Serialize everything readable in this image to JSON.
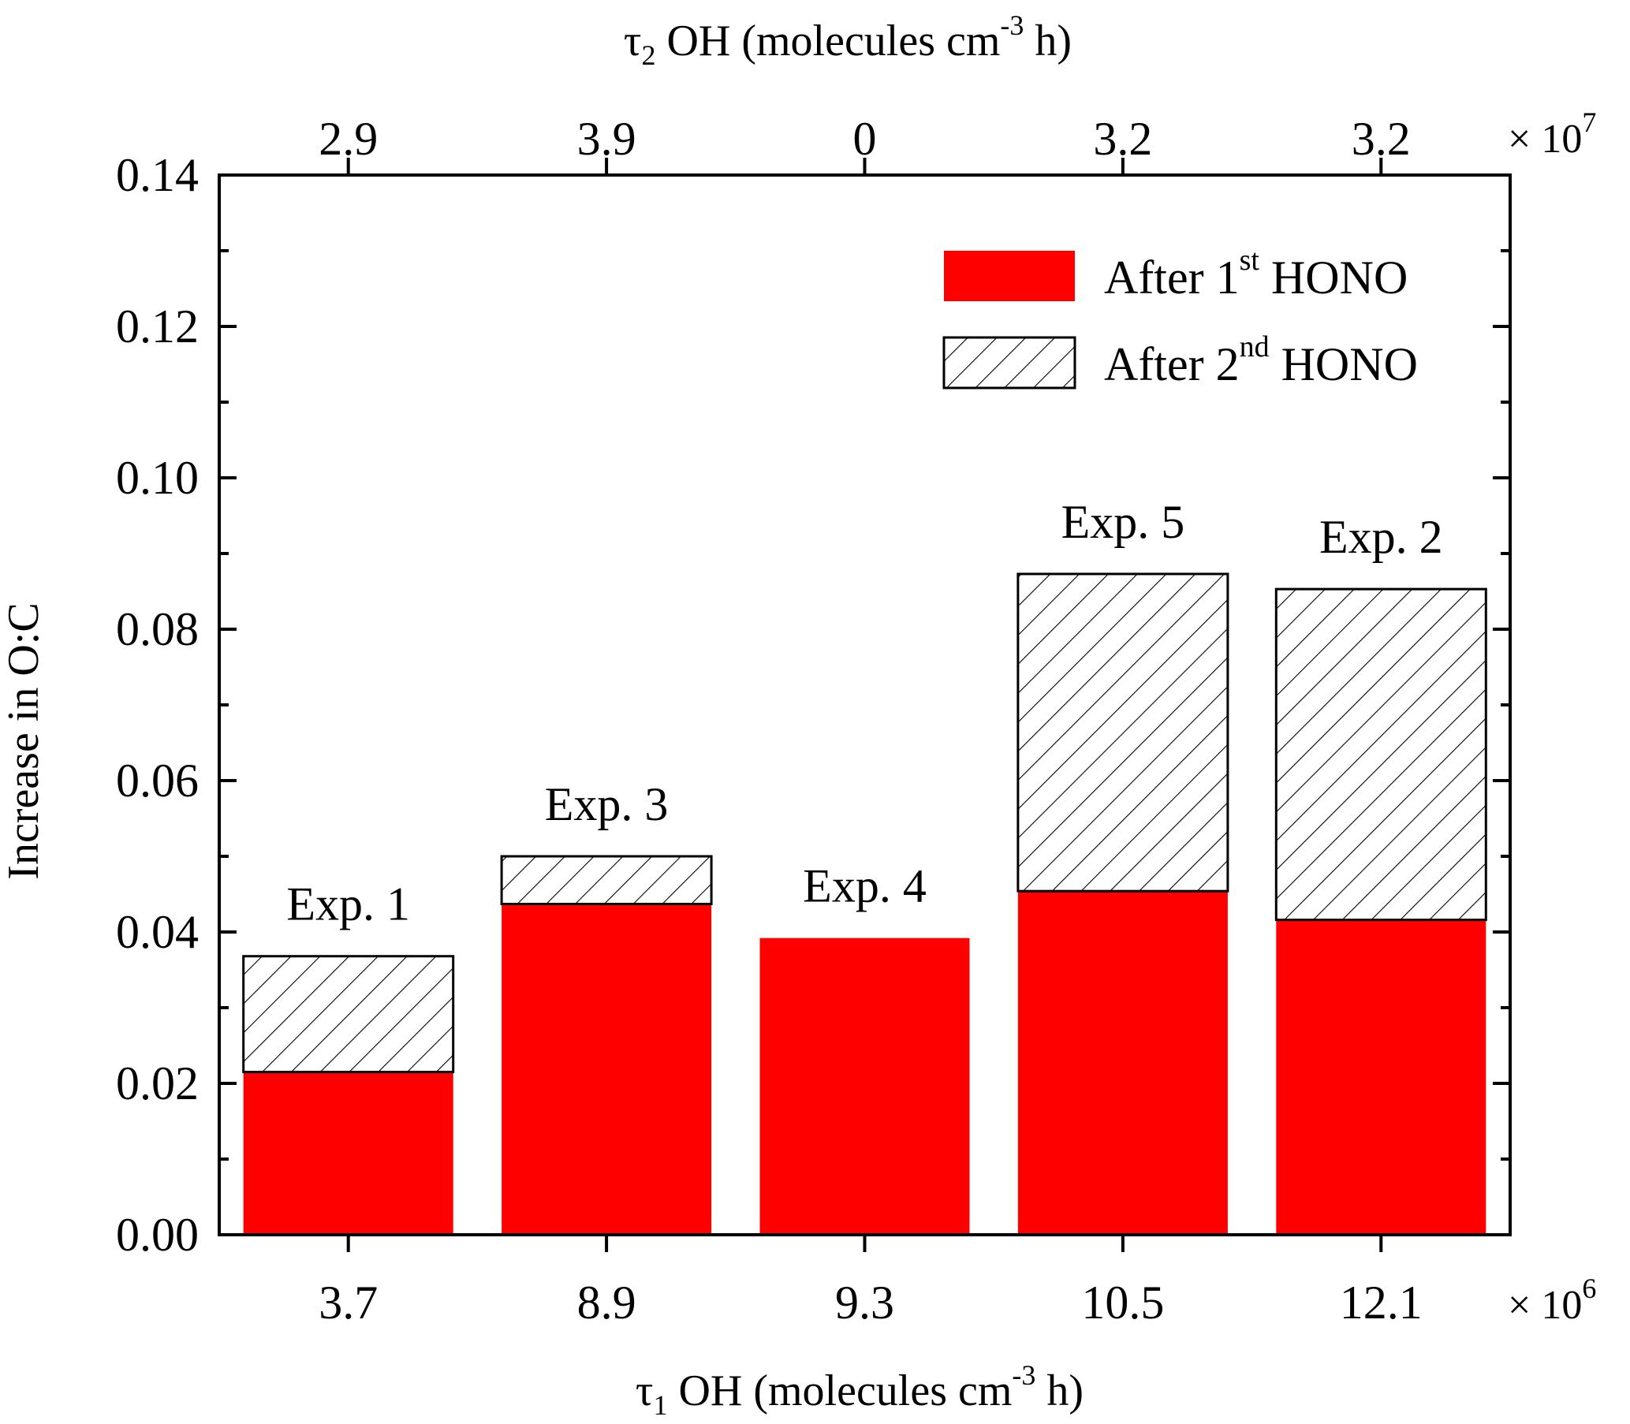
{
  "chart_data": {
    "type": "bar",
    "stacked": true,
    "categories": [
      "3.7",
      "8.9",
      "9.3",
      "10.5",
      "12.1"
    ],
    "top_categories": [
      "2.9",
      "3.9",
      "0",
      "3.2",
      "3.2"
    ],
    "bar_labels": [
      "Exp. 1",
      "Exp. 3",
      "Exp. 4",
      "Exp. 5",
      "Exp. 2"
    ],
    "series": [
      {
        "name_prefix": "After 1",
        "name_sup": "st",
        "name_suffix": " HONO",
        "fill": "#ff0000",
        "pattern": "solid",
        "values": [
          0.0215,
          0.0437,
          0.0392,
          0.0454,
          0.0416
        ]
      },
      {
        "name_prefix": "After 2",
        "name_sup": "nd",
        "name_suffix": " HONO",
        "fill": "#ffffff",
        "pattern": "hatch",
        "values": [
          0.0153,
          0.0063,
          0.0,
          0.0419,
          0.0437
        ]
      }
    ],
    "ylabel": "Increase in O:C",
    "xlabel": {
      "tau": "τ",
      "sub": "1",
      "text": " OH (molecules cm",
      "sup": "-3",
      "end": " h)"
    },
    "x2label": {
      "tau": "τ",
      "sub": "2",
      "text": " OH (molecules cm",
      "sup": "-3",
      "end": " h)"
    },
    "x_multiplier": {
      "text": "× 10",
      "exp": "6"
    },
    "x2_multiplier": {
      "text": "× 10",
      "exp": "7"
    },
    "ylim": [
      0,
      0.14
    ],
    "yticks": [
      "0.00",
      "0.02",
      "0.04",
      "0.06",
      "0.08",
      "0.10",
      "0.12",
      "0.14"
    ],
    "legend_position": "top-right",
    "grid": false
  }
}
